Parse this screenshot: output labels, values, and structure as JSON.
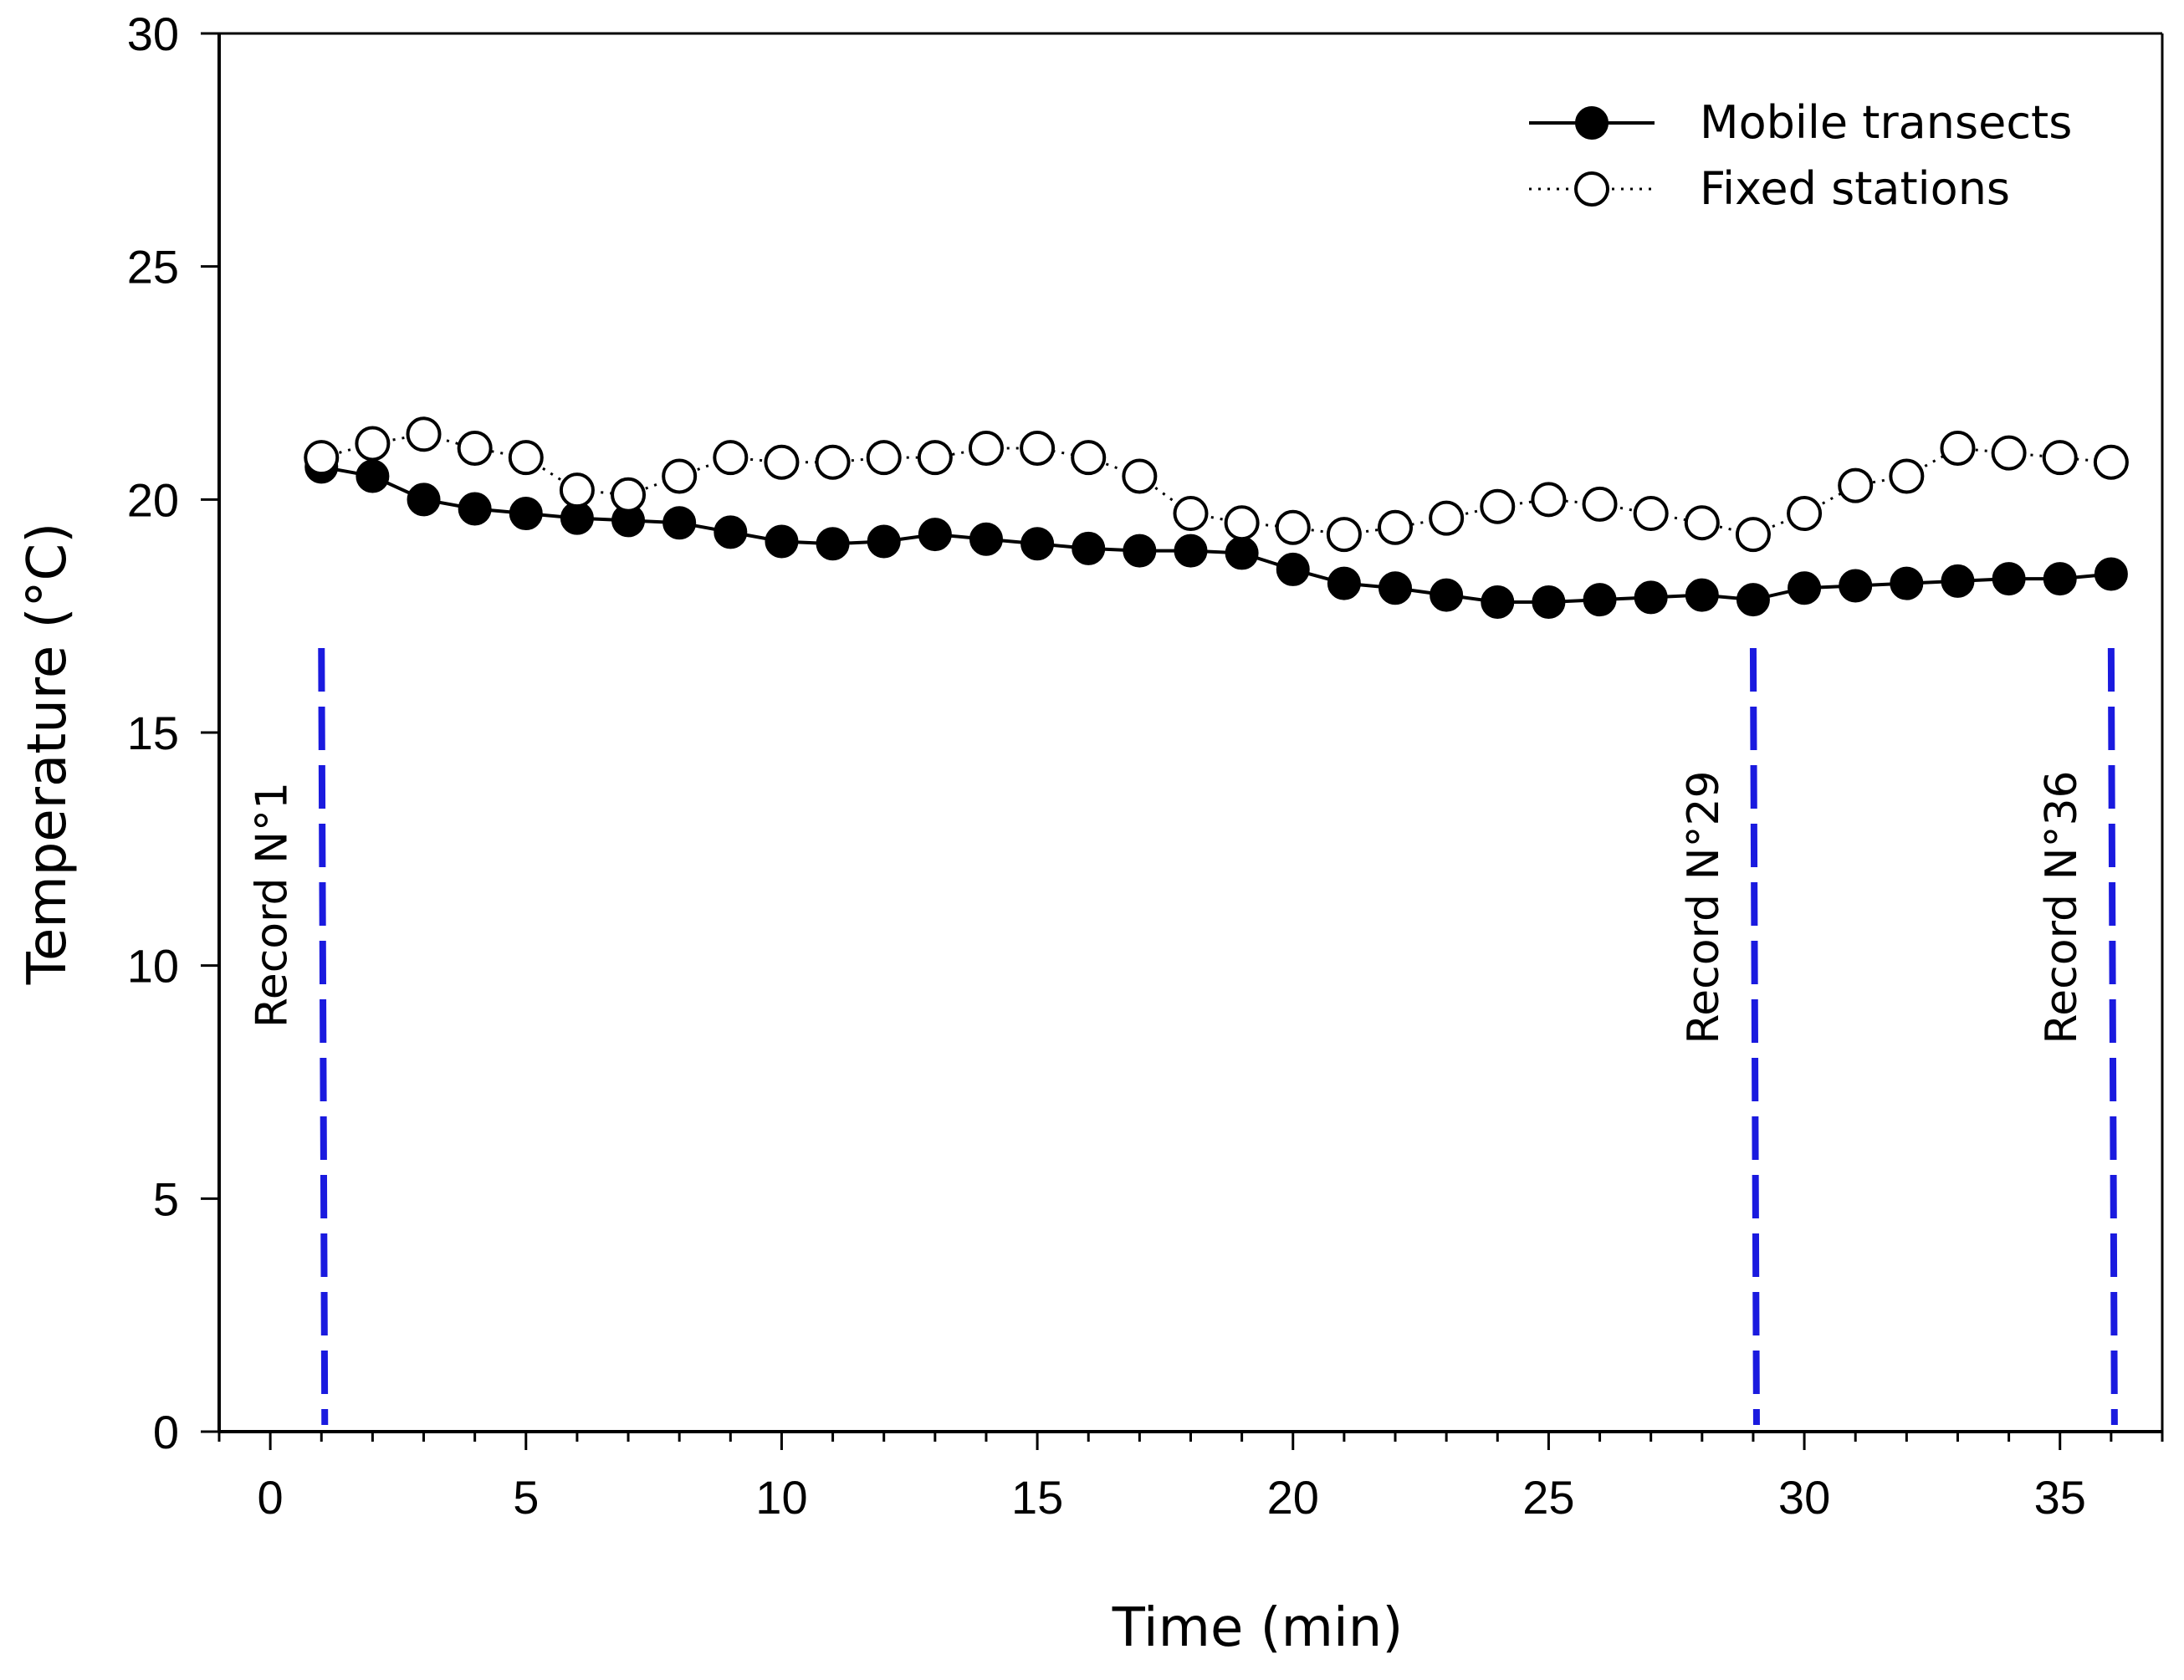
{
  "chart_data": {
    "type": "line",
    "title": "",
    "xlabel": "Time (min)",
    "ylabel": "Temperature (°C)",
    "xlim": [
      -1,
      37
    ],
    "ylim": [
      0,
      30
    ],
    "xticks": [
      0,
      5,
      10,
      15,
      20,
      25,
      30,
      35
    ],
    "yticks": [
      0,
      5,
      10,
      15,
      20,
      25,
      30
    ],
    "x": [
      1,
      2,
      3,
      4,
      5,
      6,
      7,
      8,
      9,
      10,
      11,
      12,
      13,
      14,
      15,
      16,
      17,
      18,
      19,
      20,
      21,
      22,
      23,
      24,
      25,
      26,
      27,
      28,
      29,
      30,
      31,
      32,
      33,
      34,
      35,
      36
    ],
    "series": [
      {
        "name": "Mobile transects",
        "marker": "filled-circle",
        "line": "solid",
        "color": "#000000",
        "values": [
          20.7,
          20.5,
          20.0,
          19.8,
          19.7,
          19.6,
          19.55,
          19.5,
          19.3,
          19.1,
          19.05,
          19.1,
          19.25,
          19.15,
          19.05,
          18.95,
          18.9,
          18.9,
          18.85,
          18.5,
          18.2,
          18.1,
          17.95,
          17.8,
          17.8,
          17.85,
          17.9,
          17.95,
          17.85,
          18.1,
          18.15,
          18.2,
          18.25,
          18.3,
          18.3,
          18.4
        ]
      },
      {
        "name": "Fixed stations",
        "marker": "open-circle",
        "line": "dotted",
        "color": "#000000",
        "values": [
          20.9,
          21.2,
          21.4,
          21.1,
          20.9,
          20.2,
          20.1,
          20.5,
          20.9,
          20.8,
          20.8,
          20.9,
          20.9,
          21.1,
          21.1,
          20.9,
          20.5,
          19.7,
          19.5,
          19.4,
          19.25,
          19.4,
          19.6,
          19.85,
          20.0,
          19.9,
          19.7,
          19.5,
          19.25,
          19.7,
          20.3,
          20.5,
          21.1,
          21.0,
          20.9,
          20.8
        ]
      }
    ],
    "legend_position": "top-right",
    "annotations": [
      {
        "label": "Record N°1",
        "x": 1,
        "style": "dashed-vertical",
        "color": "#1a1adf"
      },
      {
        "label": "Record N°29",
        "x": 29,
        "style": "dashed-vertical",
        "color": "#1a1adf"
      },
      {
        "label": "Record N°36",
        "x": 36,
        "style": "dashed-vertical",
        "color": "#1a1adf"
      }
    ],
    "grid": false
  }
}
